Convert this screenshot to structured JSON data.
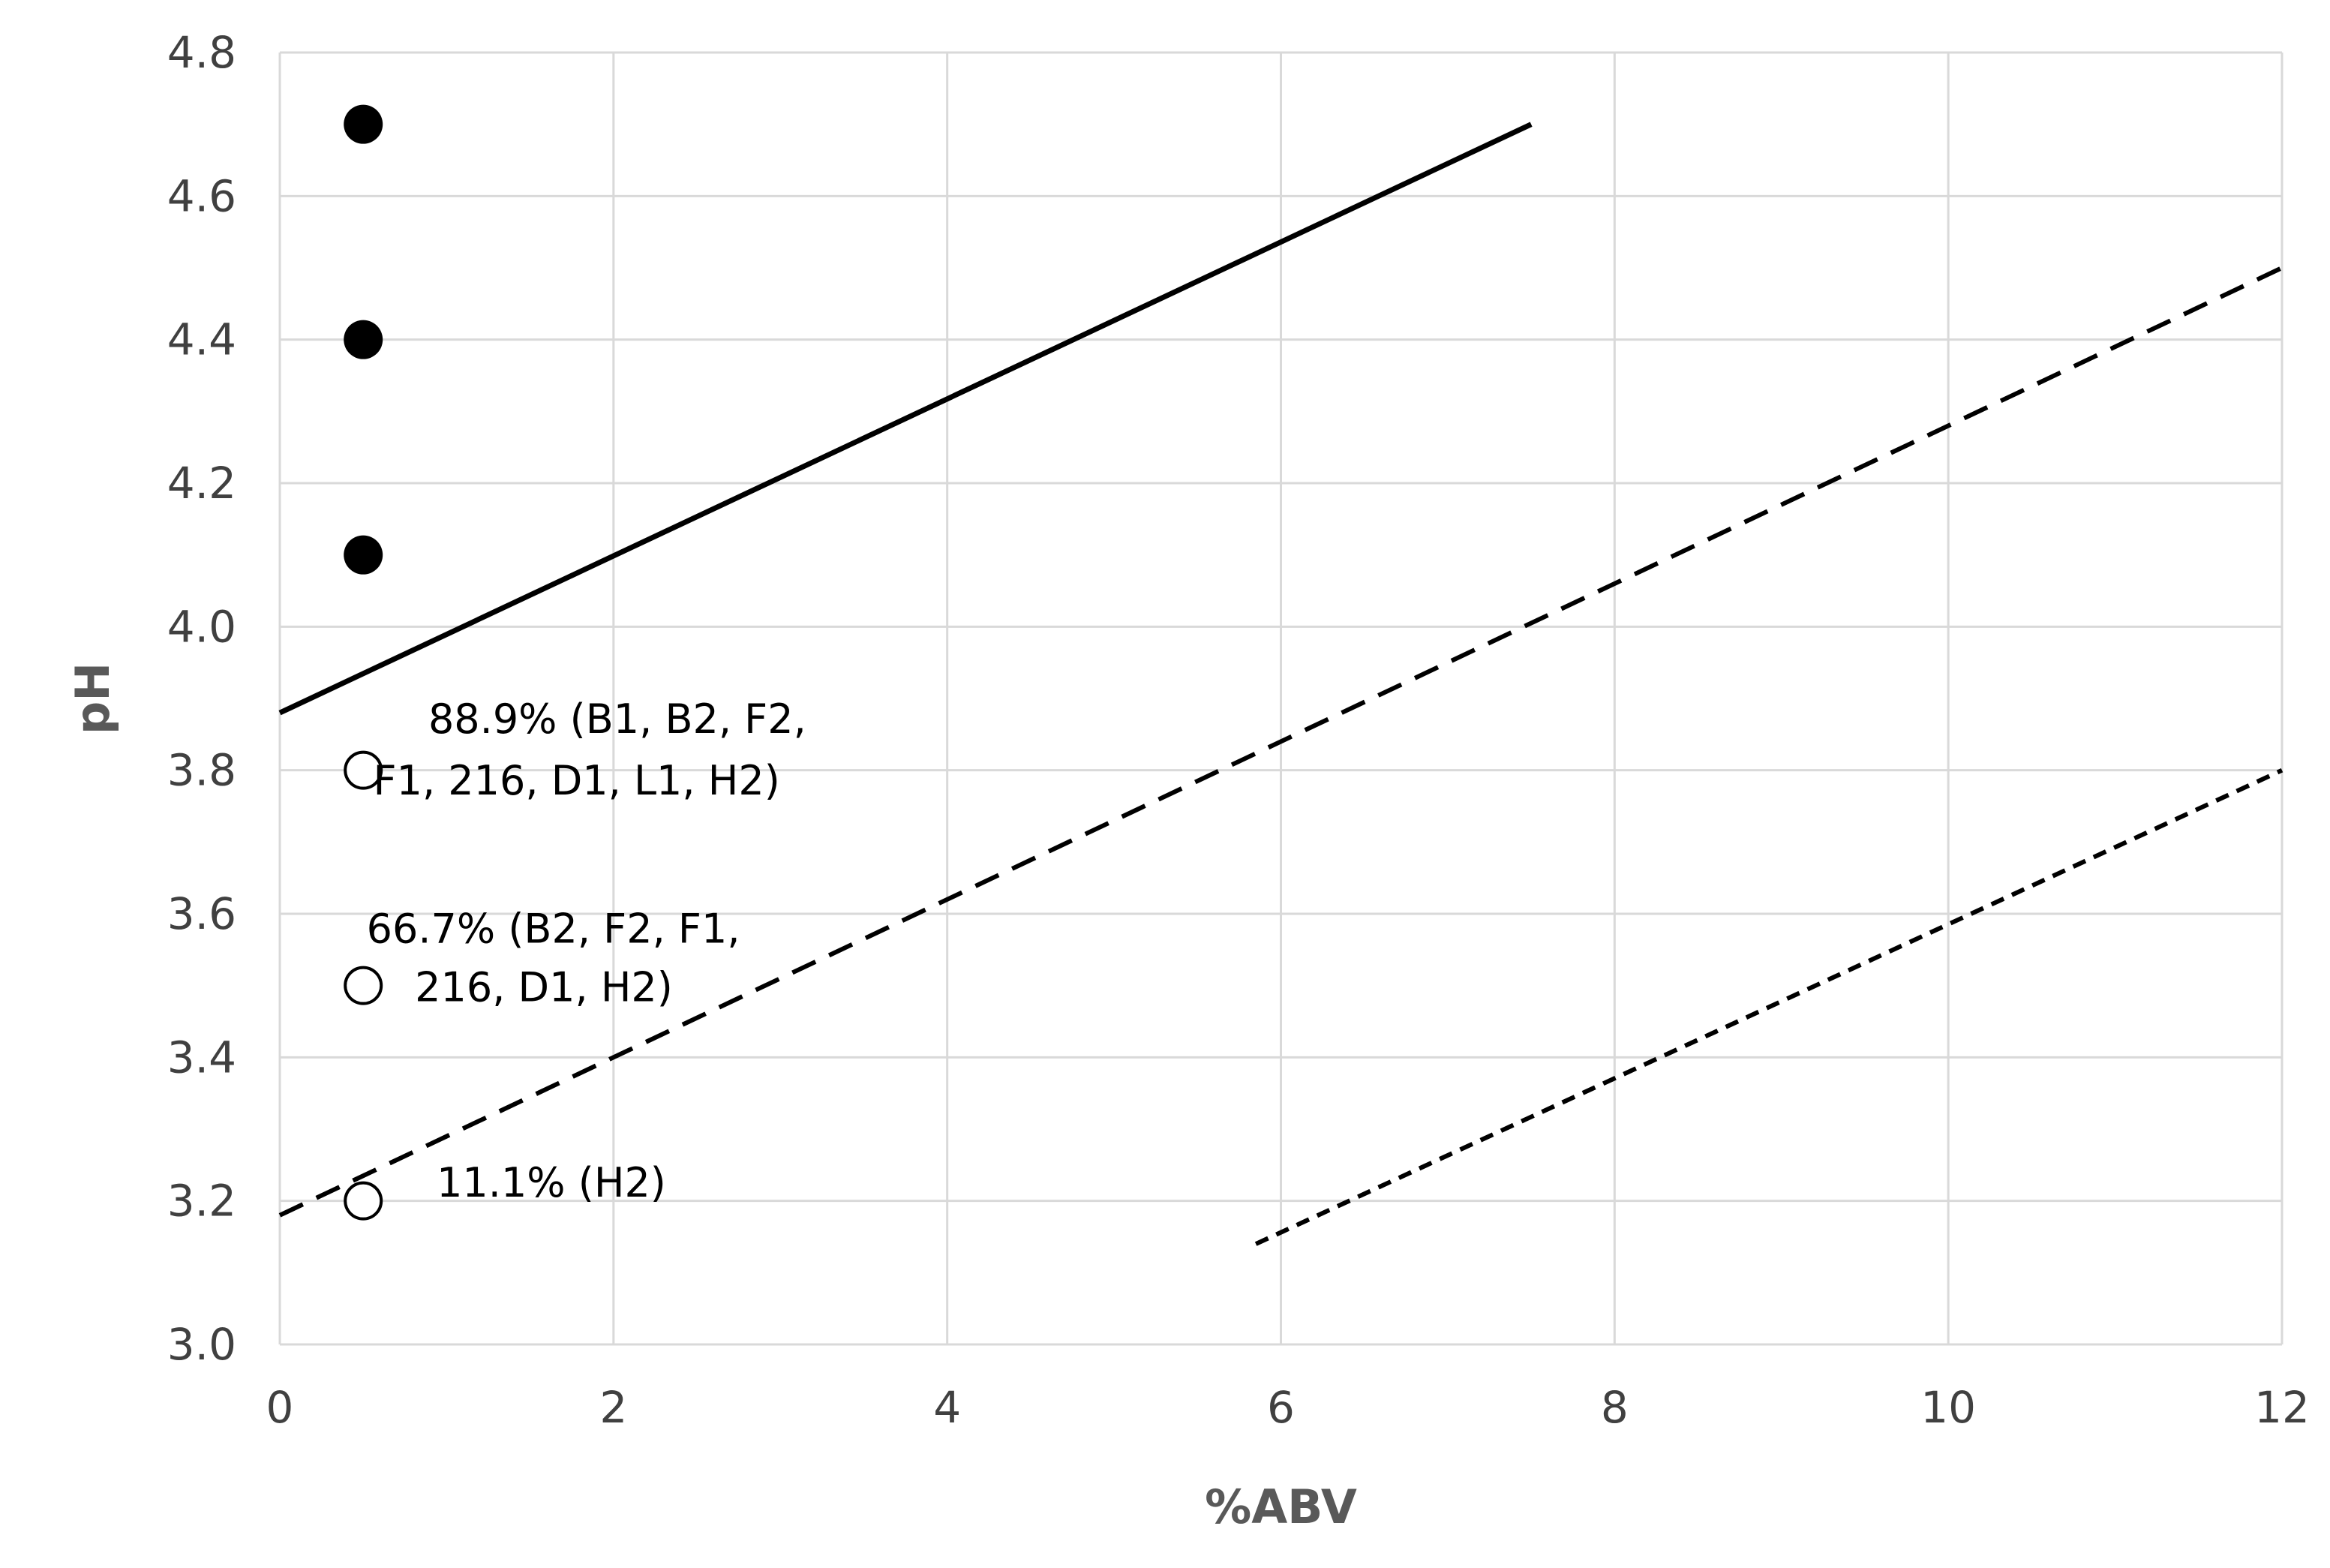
{
  "chart_data": {
    "type": "scatter",
    "title": "",
    "xlabel": "%ABV",
    "ylabel": "pH",
    "xlim": [
      0,
      12
    ],
    "ylim": [
      3.0,
      4.8
    ],
    "x_ticks": [
      0,
      2,
      4,
      6,
      8,
      10,
      12
    ],
    "y_ticks": [
      "3.0",
      "3.2",
      "3.4",
      "3.6",
      "3.8",
      "4.0",
      "4.2",
      "4.4",
      "4.6",
      "4.8"
    ],
    "grid": true,
    "series": [
      {
        "marker": "filled-circle",
        "points": [
          [
            0.5,
            4.7
          ],
          [
            0.5,
            4.4
          ],
          [
            0.5,
            4.1
          ]
        ]
      },
      {
        "marker": "open-circle",
        "points": [
          [
            0.5,
            3.8
          ],
          [
            0.5,
            3.5
          ],
          [
            0.5,
            3.2
          ]
        ]
      }
    ],
    "lines": [
      {
        "style": "solid",
        "points": [
          [
            0,
            3.88
          ],
          [
            7.5,
            4.7
          ]
        ]
      },
      {
        "style": "dashed",
        "points": [
          [
            0,
            3.18
          ],
          [
            12,
            4.5
          ]
        ]
      },
      {
        "style": "dotted",
        "points": [
          [
            5.85,
            3.14
          ],
          [
            12,
            3.8
          ]
        ]
      }
    ],
    "annotations": [
      {
        "lines": [
          "88.9% (B1, B2, F2,",
          "F1, 216, D1, L1, H2)"
        ],
        "at": [
          0.5,
          3.8
        ]
      },
      {
        "lines": [
          "66.7% (B2, F2, F1,",
          "216, D1, H2)"
        ],
        "at": [
          0.5,
          3.5
        ]
      },
      {
        "lines": [
          "11.1% (H2)"
        ],
        "at": [
          0.5,
          3.2
        ]
      }
    ],
    "colors": {
      "grid": "#d9d9d9",
      "tick_text": "#404040",
      "axis_title": "#595959",
      "marks": "#000000"
    }
  }
}
